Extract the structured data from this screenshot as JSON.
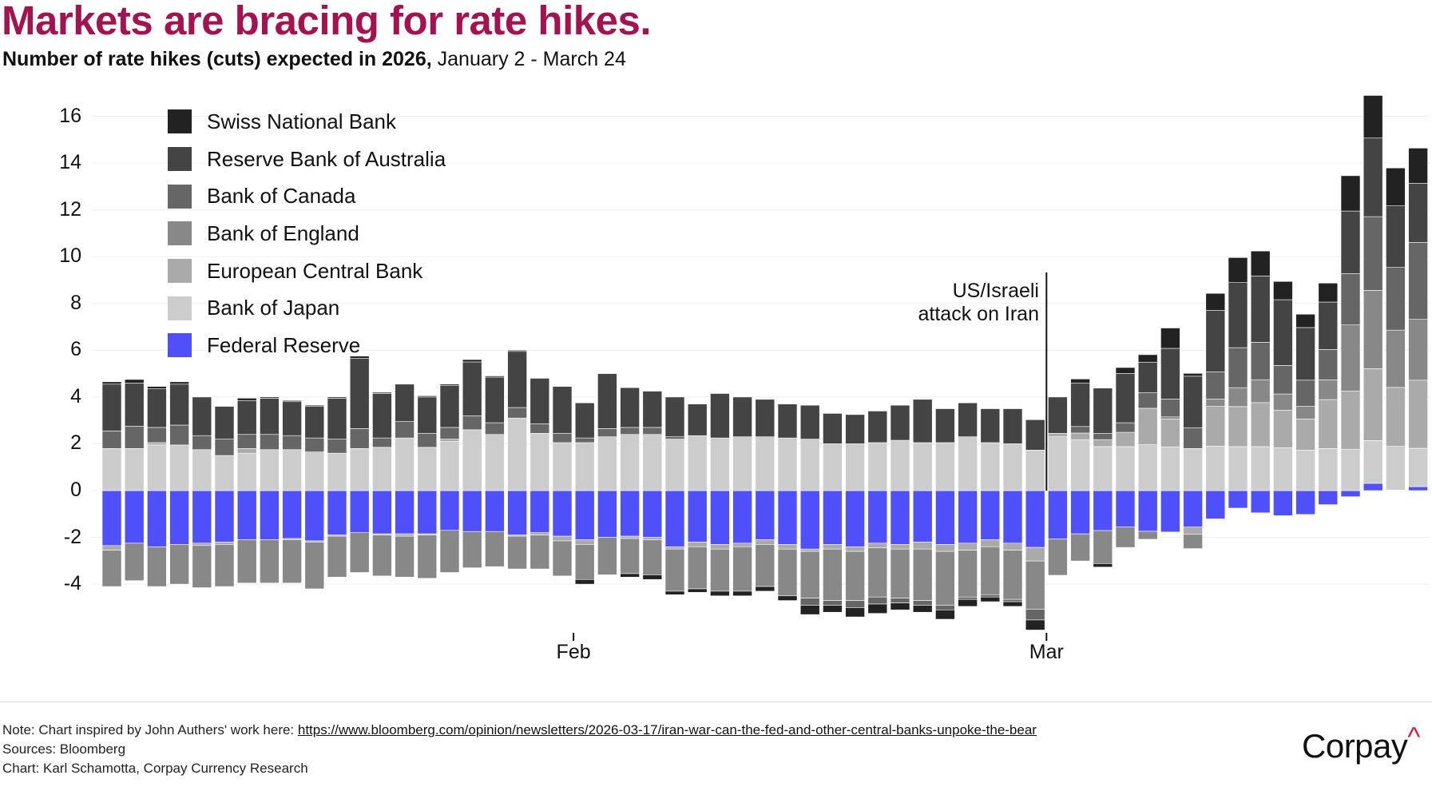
{
  "header": {
    "title": "Markets are bracing for rate hikes.",
    "subtitle_bold": "Number of rate hikes (cuts) expected in 2026,",
    "subtitle_rest": " January 2 - March 24"
  },
  "annotation": {
    "line1": "US/Israeli",
    "line2": "attack on Iran"
  },
  "footer": {
    "note_prefix": "Note: Chart inspired by John Authers' work here: ",
    "note_link": "https://www.bloomberg.com/opinion/newsletters/2026-03-17/iran-war-can-the-fed-and-other-central-banks-unpoke-the-bear",
    "sources": "Sources: Bloomberg",
    "credit": "Chart: Karl Schamotta, Corpay Currency Research"
  },
  "logo": {
    "text": "Corpay",
    "mark": "^"
  },
  "chart_data": {
    "type": "bar",
    "stacked": true,
    "title": "Markets are bracing for rate hikes.",
    "ylabel": "Number of rate hikes (cuts) expected in 2026",
    "ylim": [
      -6,
      17
    ],
    "yticks": [
      -4,
      -2,
      0,
      2,
      4,
      6,
      8,
      10,
      12,
      14,
      16
    ],
    "grid": true,
    "legend_placement": "top-left",
    "x_ticks": [
      {
        "label": "Feb",
        "index": 20.5
      },
      {
        "label": "Mar",
        "index": 41.5
      }
    ],
    "event_marker_index": 41.5,
    "legend_order": [
      "snb",
      "rba",
      "boc",
      "boe",
      "ecb",
      "boj",
      "fed"
    ],
    "stack_order": [
      "fed",
      "boj",
      "ecb",
      "boe",
      "boc",
      "rba",
      "snb"
    ],
    "series": {
      "snb": {
        "name": "Swiss National Bank",
        "color": "#222222",
        "values": [
          0.1,
          0.15,
          0.1,
          0.1,
          0,
          0,
          0.1,
          0.05,
          0.05,
          0.05,
          0.05,
          0.1,
          0.05,
          0,
          0.05,
          0.05,
          0.1,
          0.05,
          0.05,
          0,
          0,
          -0.2,
          0,
          -0.15,
          -0.2,
          -0.15,
          -0.15,
          -0.2,
          -0.2,
          -0.2,
          -0.2,
          -0.4,
          -0.3,
          -0.4,
          -0.4,
          -0.3,
          -0.3,
          -0.4,
          -0.3,
          -0.2,
          -0.2,
          -0.43,
          0,
          0.18,
          -0.15,
          0.25,
          0.32,
          0.87,
          0.12,
          0.73,
          1.07,
          1.07,
          0.78,
          0.57,
          0.81,
          1.51,
          1.82,
          1.62,
          1.51
        ]
      },
      "rba": {
        "name": "Reserve Bank of Australia",
        "color": "#444444",
        "values": [
          2.0,
          1.85,
          1.65,
          1.75,
          1.65,
          1.4,
          1.45,
          1.55,
          1.45,
          1.35,
          1.75,
          3.0,
          1.9,
          1.6,
          1.55,
          1.8,
          2.3,
          1.95,
          2.4,
          1.95,
          2.0,
          1.5,
          2.35,
          1.7,
          1.55,
          1.7,
          1.35,
          1.9,
          1.7,
          1.6,
          1.45,
          1.45,
          1.3,
          1.25,
          1.35,
          1.5,
          1.85,
          1.45,
          1.45,
          1.45,
          1.5,
          1.3,
          1.55,
          1.85,
          1.94,
          2.11,
          1.31,
          2.17,
          2.2,
          2.63,
          2.78,
          2.83,
          2.81,
          2.25,
          2.03,
          2.68,
          3.36,
          2.63,
          2.52
        ]
      },
      "boc": {
        "name": "Bank of Canada",
        "color": "#666666",
        "values": [
          0.75,
          0.95,
          0.65,
          0.85,
          0.6,
          0.7,
          0.6,
          0.65,
          0.6,
          0.6,
          0.6,
          0.85,
          0.4,
          0.7,
          0.6,
          0.5,
          0.6,
          0.5,
          0.45,
          0.4,
          0.4,
          0.2,
          0.35,
          0.3,
          0.3,
          0.1,
          0,
          0,
          0,
          0,
          0,
          -0.3,
          -0.2,
          -0.3,
          -0.3,
          -0.2,
          -0.2,
          -0.2,
          -0.1,
          -0.1,
          -0.1,
          -0.46,
          0,
          0.28,
          0.26,
          0.41,
          0.66,
          0.76,
          0.89,
          1.16,
          1.71,
          1.6,
          1.22,
          1.12,
          1.3,
          2.19,
          3.15,
          2.68,
          3.29
        ]
      },
      "boe": {
        "name": "Bank of England",
        "color": "#888888",
        "values": [
          -1.55,
          -1.6,
          -1.7,
          -1.7,
          -1.8,
          -1.8,
          -1.85,
          -1.85,
          -1.85,
          -2.0,
          -1.75,
          -1.7,
          -1.75,
          -1.75,
          -1.85,
          -1.8,
          -1.55,
          -1.5,
          -1.4,
          -1.45,
          -1.5,
          -1.5,
          -1.6,
          -1.5,
          -1.5,
          -1.8,
          -1.8,
          -1.8,
          -1.9,
          -1.8,
          -2.0,
          -2.0,
          -2.2,
          -2.1,
          -2.1,
          -2.1,
          -2.2,
          -2.3,
          -2.0,
          -2.05,
          -2.1,
          -2.06,
          -1.56,
          -1.16,
          -1.41,
          -0.87,
          -0.34,
          0.09,
          -0.61,
          0.31,
          0.81,
          0.98,
          0.69,
          0.54,
          0.84,
          2.83,
          3.35,
          2.45,
          2.6
        ]
      },
      "ecb": {
        "name": "European Central Bank",
        "color": "#aaaaaa",
        "values": [
          -0.2,
          0,
          0.1,
          0,
          -0.1,
          -0.1,
          0.2,
          0,
          -0.05,
          -0.05,
          -0.05,
          0,
          -0.05,
          -0.1,
          -0.05,
          0.1,
          0,
          0,
          -0.05,
          -0.1,
          -0.2,
          -0.2,
          0,
          -0.1,
          -0.1,
          -0.1,
          -0.2,
          -0.2,
          -0.15,
          -0.2,
          -0.2,
          -0.1,
          -0.2,
          -0.2,
          -0.2,
          -0.2,
          -0.3,
          -0.3,
          -0.3,
          -0.3,
          -0.3,
          -0.58,
          0.15,
          0.29,
          0.3,
          0.61,
          1.56,
          1.19,
          -0.31,
          1.7,
          1.71,
          1.88,
          1.61,
          1.33,
          2.09,
          2.48,
          3.07,
          2.52,
          2.91
        ]
      },
      "boj": {
        "name": "Bank of Japan",
        "color": "#cccccc",
        "values": [
          1.8,
          1.8,
          1.95,
          1.95,
          1.75,
          1.5,
          1.6,
          1.75,
          1.75,
          1.65,
          1.6,
          1.8,
          1.85,
          2.25,
          1.85,
          2.1,
          2.6,
          2.4,
          3.1,
          2.45,
          2.05,
          2.05,
          2.3,
          2.4,
          2.4,
          2.2,
          2.35,
          2.25,
          2.3,
          2.3,
          2.25,
          2.2,
          2.0,
          2.0,
          2.05,
          2.15,
          2.05,
          2.05,
          2.3,
          2.05,
          2.0,
          1.73,
          2.3,
          2.17,
          1.88,
          1.88,
          1.96,
          1.87,
          1.8,
          1.9,
          1.88,
          1.88,
          1.83,
          1.73,
          1.8,
          1.77,
          1.83,
          1.87,
          1.64
        ]
      },
      "fed": {
        "name": "Federal Reserve",
        "color": "#5050fa",
        "values": [
          -2.35,
          -2.25,
          -2.4,
          -2.3,
          -2.25,
          -2.2,
          -2.1,
          -2.1,
          -2.05,
          -2.15,
          -1.9,
          -1.8,
          -1.85,
          -1.85,
          -1.85,
          -1.7,
          -1.75,
          -1.75,
          -1.9,
          -1.8,
          -1.95,
          -2.1,
          -2.0,
          -1.95,
          -2.0,
          -2.4,
          -2.2,
          -2.3,
          -2.25,
          -2.1,
          -2.3,
          -2.5,
          -2.3,
          -2.4,
          -2.25,
          -2.3,
          -2.2,
          -2.3,
          -2.25,
          -2.1,
          -2.25,
          -2.43,
          -2.06,
          -1.85,
          -1.71,
          -1.56,
          -1.74,
          -1.77,
          -1.56,
          -1.21,
          -0.75,
          -0.95,
          -1.07,
          -1.02,
          -0.6,
          -0.26,
          0.31,
          0.02,
          0.17
        ]
      }
    }
  }
}
